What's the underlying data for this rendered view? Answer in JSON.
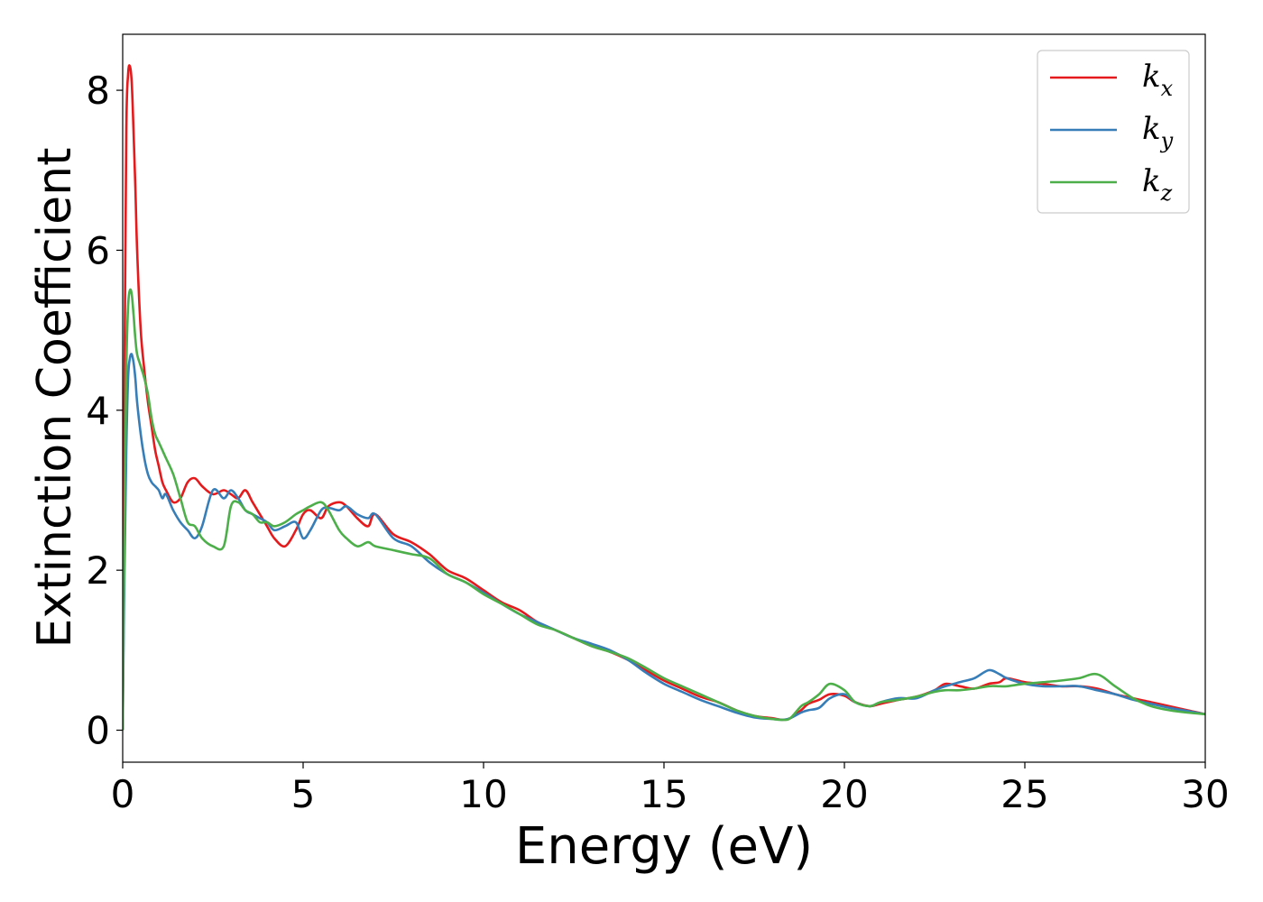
{
  "chart_data": {
    "type": "line",
    "title": "",
    "xlabel": "Energy (eV)",
    "ylabel": "Extinction Coefficient",
    "xlim": [
      0,
      30
    ],
    "ylim": [
      -0.4,
      8.7
    ],
    "xticks": [
      0,
      5,
      10,
      15,
      20,
      25,
      30
    ],
    "xtick_labels": [
      "0",
      "5",
      "10",
      "15",
      "20",
      "25",
      "30"
    ],
    "yticks": [
      0,
      2,
      4,
      6,
      8
    ],
    "ytick_labels": [
      "0",
      "2",
      "4",
      "6",
      "8"
    ],
    "grid": false,
    "legend_position": "top-right",
    "series": [
      {
        "name": "k_x",
        "legend_base": "k",
        "legend_sub": "x",
        "color": "#e41a1c",
        "x": [
          0,
          0.05,
          0.1,
          0.15,
          0.2,
          0.25,
          0.3,
          0.35,
          0.4,
          0.5,
          0.6,
          0.7,
          0.8,
          0.9,
          1.0,
          1.1,
          1.2,
          1.4,
          1.6,
          1.8,
          2.0,
          2.2,
          2.5,
          2.8,
          3.0,
          3.2,
          3.4,
          3.6,
          3.8,
          4.0,
          4.2,
          4.5,
          4.8,
          5.0,
          5.2,
          5.5,
          5.7,
          6.0,
          6.2,
          6.5,
          6.8,
          7.0,
          7.5,
          8.0,
          8.5,
          9.0,
          9.5,
          10.0,
          10.5,
          11.0,
          11.5,
          12.0,
          12.5,
          13.0,
          13.5,
          14.0,
          14.5,
          15.0,
          15.5,
          16.0,
          16.5,
          17.0,
          17.5,
          18.0,
          18.3,
          18.5,
          18.8,
          19.0,
          19.3,
          19.6,
          20.0,
          20.3,
          20.7,
          21.0,
          21.5,
          22.0,
          22.5,
          22.8,
          23.2,
          23.6,
          24.0,
          24.3,
          24.5,
          25.0,
          25.5,
          26.0,
          26.5,
          27.0,
          27.5,
          28.0,
          28.5,
          29.0,
          29.5,
          30.0
        ],
        "y": [
          0,
          4.5,
          7.5,
          8.2,
          8.3,
          8.1,
          7.5,
          6.8,
          6.0,
          5.0,
          4.5,
          4.1,
          3.8,
          3.5,
          3.3,
          3.1,
          3.0,
          2.85,
          2.9,
          3.1,
          3.15,
          3.05,
          2.95,
          3.0,
          2.95,
          2.9,
          3.0,
          2.85,
          2.7,
          2.55,
          2.4,
          2.3,
          2.5,
          2.7,
          2.75,
          2.65,
          2.8,
          2.85,
          2.8,
          2.65,
          2.55,
          2.7,
          2.45,
          2.35,
          2.2,
          2.0,
          1.9,
          1.75,
          1.6,
          1.5,
          1.35,
          1.25,
          1.15,
          1.05,
          0.98,
          0.88,
          0.75,
          0.62,
          0.52,
          0.42,
          0.35,
          0.25,
          0.18,
          0.15,
          0.13,
          0.15,
          0.25,
          0.33,
          0.38,
          0.45,
          0.43,
          0.35,
          0.3,
          0.33,
          0.38,
          0.42,
          0.5,
          0.58,
          0.55,
          0.52,
          0.58,
          0.6,
          0.65,
          0.6,
          0.58,
          0.55,
          0.55,
          0.52,
          0.45,
          0.4,
          0.35,
          0.3,
          0.25,
          0.2
        ]
      },
      {
        "name": "k_y",
        "legend_base": "k",
        "legend_sub": "y",
        "color": "#377eb8",
        "x": [
          0,
          0.05,
          0.1,
          0.15,
          0.2,
          0.25,
          0.3,
          0.35,
          0.4,
          0.5,
          0.6,
          0.7,
          0.8,
          0.9,
          1.0,
          1.1,
          1.2,
          1.4,
          1.6,
          1.8,
          2.0,
          2.2,
          2.5,
          2.8,
          3.0,
          3.2,
          3.4,
          3.6,
          3.8,
          4.0,
          4.2,
          4.5,
          4.8,
          5.0,
          5.2,
          5.5,
          5.7,
          6.0,
          6.2,
          6.5,
          6.8,
          7.0,
          7.5,
          8.0,
          8.5,
          9.0,
          9.5,
          10.0,
          10.5,
          11.0,
          11.5,
          12.0,
          12.5,
          13.0,
          13.5,
          14.0,
          14.5,
          15.0,
          15.5,
          16.0,
          16.5,
          17.0,
          17.5,
          18.0,
          18.3,
          18.5,
          18.8,
          19.0,
          19.3,
          19.6,
          20.0,
          20.3,
          20.7,
          21.0,
          21.5,
          22.0,
          22.5,
          22.8,
          23.2,
          23.6,
          24.0,
          24.3,
          24.5,
          25.0,
          25.5,
          26.0,
          26.5,
          27.0,
          27.5,
          28.0,
          28.5,
          29.0,
          29.5,
          30.0
        ],
        "y": [
          0,
          2.0,
          3.5,
          4.4,
          4.65,
          4.7,
          4.6,
          4.4,
          4.1,
          3.7,
          3.4,
          3.2,
          3.1,
          3.05,
          3.0,
          2.9,
          2.95,
          2.75,
          2.6,
          2.5,
          2.4,
          2.55,
          3.0,
          2.9,
          3.0,
          2.9,
          2.75,
          2.7,
          2.65,
          2.6,
          2.5,
          2.55,
          2.6,
          2.4,
          2.5,
          2.75,
          2.78,
          2.75,
          2.8,
          2.7,
          2.65,
          2.7,
          2.4,
          2.3,
          2.1,
          1.95,
          1.85,
          1.72,
          1.58,
          1.45,
          1.35,
          1.25,
          1.15,
          1.08,
          1.0,
          0.88,
          0.72,
          0.58,
          0.48,
          0.38,
          0.3,
          0.22,
          0.16,
          0.14,
          0.13,
          0.15,
          0.22,
          0.25,
          0.28,
          0.4,
          0.45,
          0.35,
          0.3,
          0.35,
          0.4,
          0.4,
          0.5,
          0.55,
          0.6,
          0.65,
          0.75,
          0.7,
          0.65,
          0.58,
          0.55,
          0.55,
          0.55,
          0.5,
          0.45,
          0.38,
          0.33,
          0.28,
          0.24,
          0.2
        ]
      },
      {
        "name": "k_z",
        "legend_base": "k",
        "legend_sub": "z",
        "color": "#4daf4a",
        "x": [
          0,
          0.05,
          0.1,
          0.15,
          0.2,
          0.25,
          0.3,
          0.35,
          0.4,
          0.5,
          0.6,
          0.7,
          0.8,
          0.9,
          1.0,
          1.1,
          1.2,
          1.4,
          1.6,
          1.8,
          2.0,
          2.2,
          2.5,
          2.8,
          3.0,
          3.2,
          3.4,
          3.6,
          3.8,
          4.0,
          4.2,
          4.5,
          4.8,
          5.0,
          5.2,
          5.5,
          5.7,
          6.0,
          6.2,
          6.5,
          6.8,
          7.0,
          7.5,
          8.0,
          8.5,
          9.0,
          9.5,
          10.0,
          10.5,
          11.0,
          11.5,
          12.0,
          12.5,
          13.0,
          13.5,
          14.0,
          14.5,
          15.0,
          15.5,
          16.0,
          16.5,
          17.0,
          17.5,
          18.0,
          18.3,
          18.5,
          18.8,
          19.0,
          19.3,
          19.6,
          20.0,
          20.3,
          20.7,
          21.0,
          21.5,
          22.0,
          22.5,
          22.8,
          23.2,
          23.6,
          24.0,
          24.3,
          24.5,
          25.0,
          25.5,
          26.0,
          26.5,
          27.0,
          27.5,
          28.0,
          28.5,
          29.0,
          29.5,
          30.0
        ],
        "y": [
          0,
          2.5,
          4.5,
          5.3,
          5.5,
          5.45,
          5.2,
          4.9,
          4.7,
          4.55,
          4.4,
          4.2,
          3.9,
          3.7,
          3.6,
          3.5,
          3.4,
          3.2,
          2.9,
          2.6,
          2.55,
          2.4,
          2.3,
          2.3,
          2.8,
          2.85,
          2.75,
          2.7,
          2.6,
          2.6,
          2.55,
          2.6,
          2.7,
          2.75,
          2.8,
          2.85,
          2.75,
          2.5,
          2.4,
          2.3,
          2.35,
          2.3,
          2.25,
          2.2,
          2.15,
          1.95,
          1.85,
          1.7,
          1.58,
          1.45,
          1.32,
          1.25,
          1.15,
          1.05,
          0.98,
          0.9,
          0.78,
          0.65,
          0.55,
          0.45,
          0.35,
          0.25,
          0.18,
          0.14,
          0.13,
          0.15,
          0.3,
          0.35,
          0.45,
          0.58,
          0.5,
          0.35,
          0.3,
          0.35,
          0.38,
          0.42,
          0.48,
          0.5,
          0.5,
          0.52,
          0.55,
          0.55,
          0.55,
          0.58,
          0.6,
          0.62,
          0.65,
          0.7,
          0.55,
          0.4,
          0.3,
          0.25,
          0.22,
          0.2
        ]
      }
    ]
  }
}
